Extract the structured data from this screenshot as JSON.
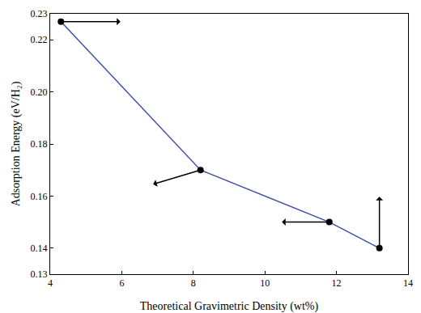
{
  "chart_data": {
    "type": "line",
    "x_label": "Theoretical Gravimetric Density (wt%)",
    "y_label": "Adsorption Energy (eV/H₂)",
    "x": [
      4.3,
      8.2,
      11.8,
      13.2
    ],
    "values": [
      0.227,
      0.17,
      0.15,
      0.14
    ],
    "color": "#3f4fa8",
    "marker": "circle",
    "xlim": [
      4,
      14
    ],
    "xticks": [
      4,
      6,
      8,
      10,
      12,
      14
    ],
    "ylim": [
      0.13,
      0.23
    ],
    "yticks": [
      0.13,
      0.14,
      0.16,
      0.18,
      {
        "value": 0.2,
        "label": "0.20"
      },
      0.22,
      0.23
    ],
    "grid": false
  }
}
